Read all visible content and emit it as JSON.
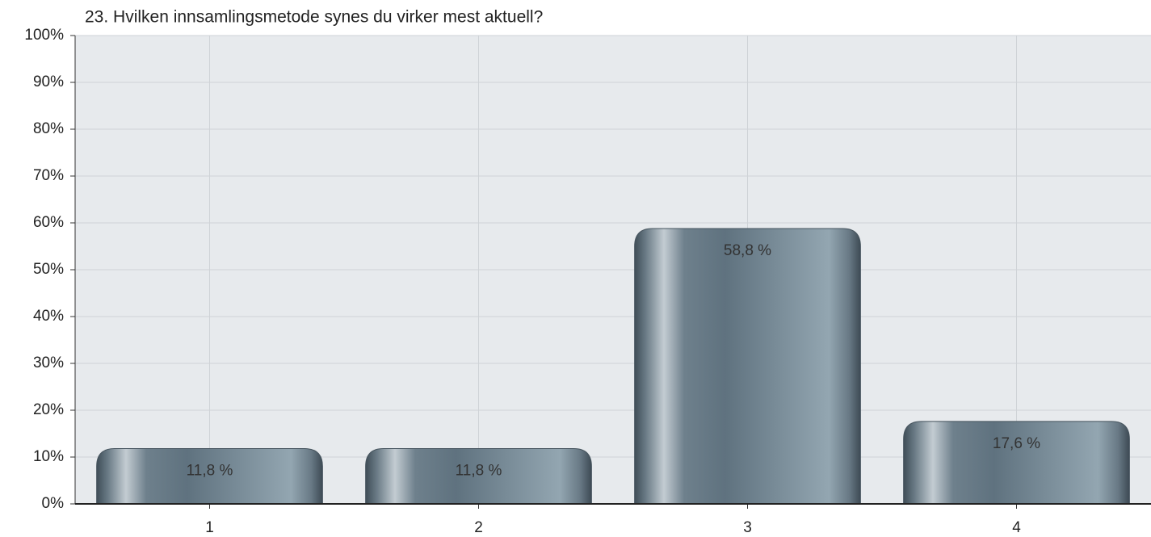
{
  "chart_data": {
    "type": "bar",
    "title": "23. Hvilken innsamlingsmetode synes du virker mest aktuell?",
    "categories": [
      "1",
      "2",
      "3",
      "4"
    ],
    "values": [
      11.8,
      11.8,
      58.8,
      17.6
    ],
    "value_labels": [
      "11,8 %",
      "11,8 %",
      "58,8 %",
      "17,6 %"
    ],
    "color": "#6b7f8b",
    "ylim": [
      0,
      100
    ],
    "yticks": [
      {
        "value": 0,
        "label": "0%"
      },
      {
        "value": 10,
        "label": "10%"
      },
      {
        "value": 20,
        "label": "20%"
      },
      {
        "value": 30,
        "label": "30%"
      },
      {
        "value": 40,
        "label": "40%"
      },
      {
        "value": 50,
        "label": "50%"
      },
      {
        "value": 60,
        "label": "60%"
      },
      {
        "value": 70,
        "label": "70%"
      },
      {
        "value": 80,
        "label": "80%"
      },
      {
        "value": 90,
        "label": "90%"
      },
      {
        "value": 100,
        "label": "100%"
      }
    ],
    "grid": true
  }
}
